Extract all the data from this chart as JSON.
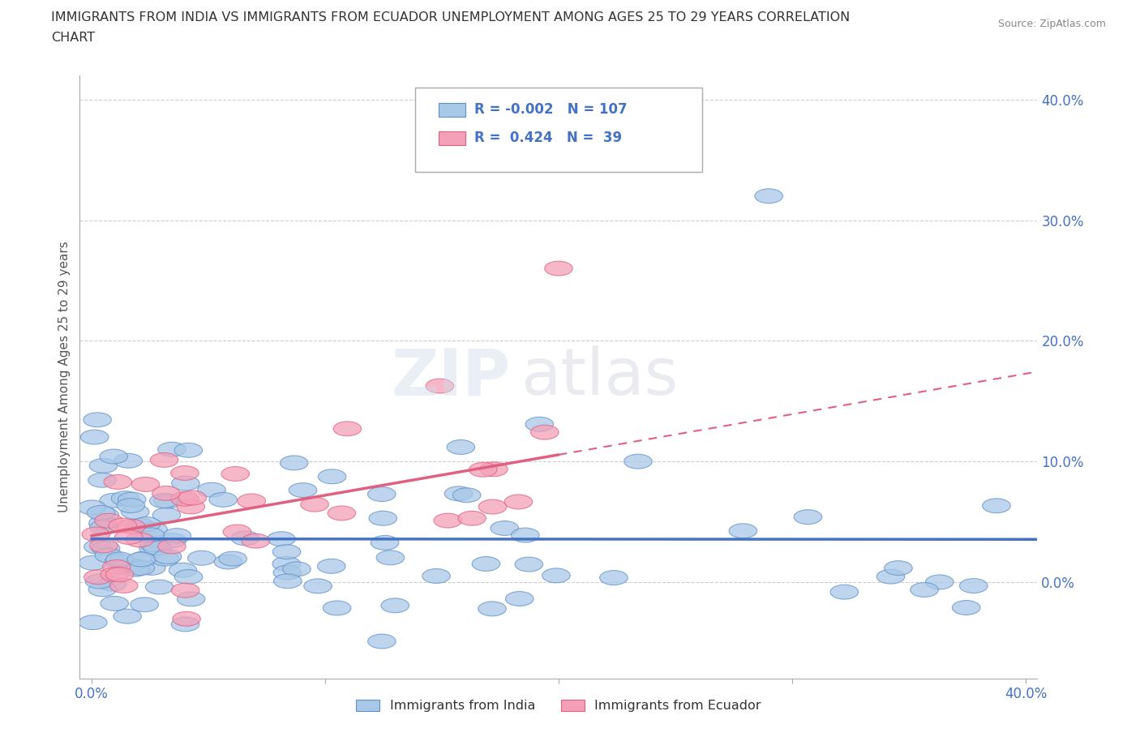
{
  "title_line1": "IMMIGRANTS FROM INDIA VS IMMIGRANTS FROM ECUADOR UNEMPLOYMENT AMONG AGES 25 TO 29 YEARS CORRELATION",
  "title_line2": "CHART",
  "source_text": "Source: ZipAtlas.com",
  "ylabel": "Unemployment Among Ages 25 to 29 years",
  "xlim": [
    -0.005,
    0.405
  ],
  "ylim": [
    -0.08,
    0.42
  ],
  "x_ticks": [
    0.0,
    0.1,
    0.2,
    0.3,
    0.4
  ],
  "x_tick_labels": [
    "0.0%",
    "",
    "",
    "",
    "40.0%"
  ],
  "y_ticks": [
    0.0,
    0.1,
    0.2,
    0.3,
    0.4
  ],
  "y_tick_labels": [
    "0.0%",
    "10.0%",
    "20.0%",
    "30.0%",
    "40.0%"
  ],
  "india_color": "#a8c8e8",
  "ecuador_color": "#f4a0b8",
  "india_edge_color": "#6090c8",
  "ecuador_edge_color": "#e06080",
  "india_line_color": "#4472c4",
  "ecuador_line_color": "#e06080",
  "india_R": -0.002,
  "india_N": 107,
  "ecuador_R": 0.424,
  "ecuador_N": 39,
  "legend_text_color": "#4472c4",
  "watermark_zip": "ZIP",
  "watermark_atlas": "atlas",
  "background_color": "#ffffff",
  "grid_color": "#cccccc",
  "title_color": "#333333",
  "source_color": "#888888",
  "label_color": "#4472c4"
}
